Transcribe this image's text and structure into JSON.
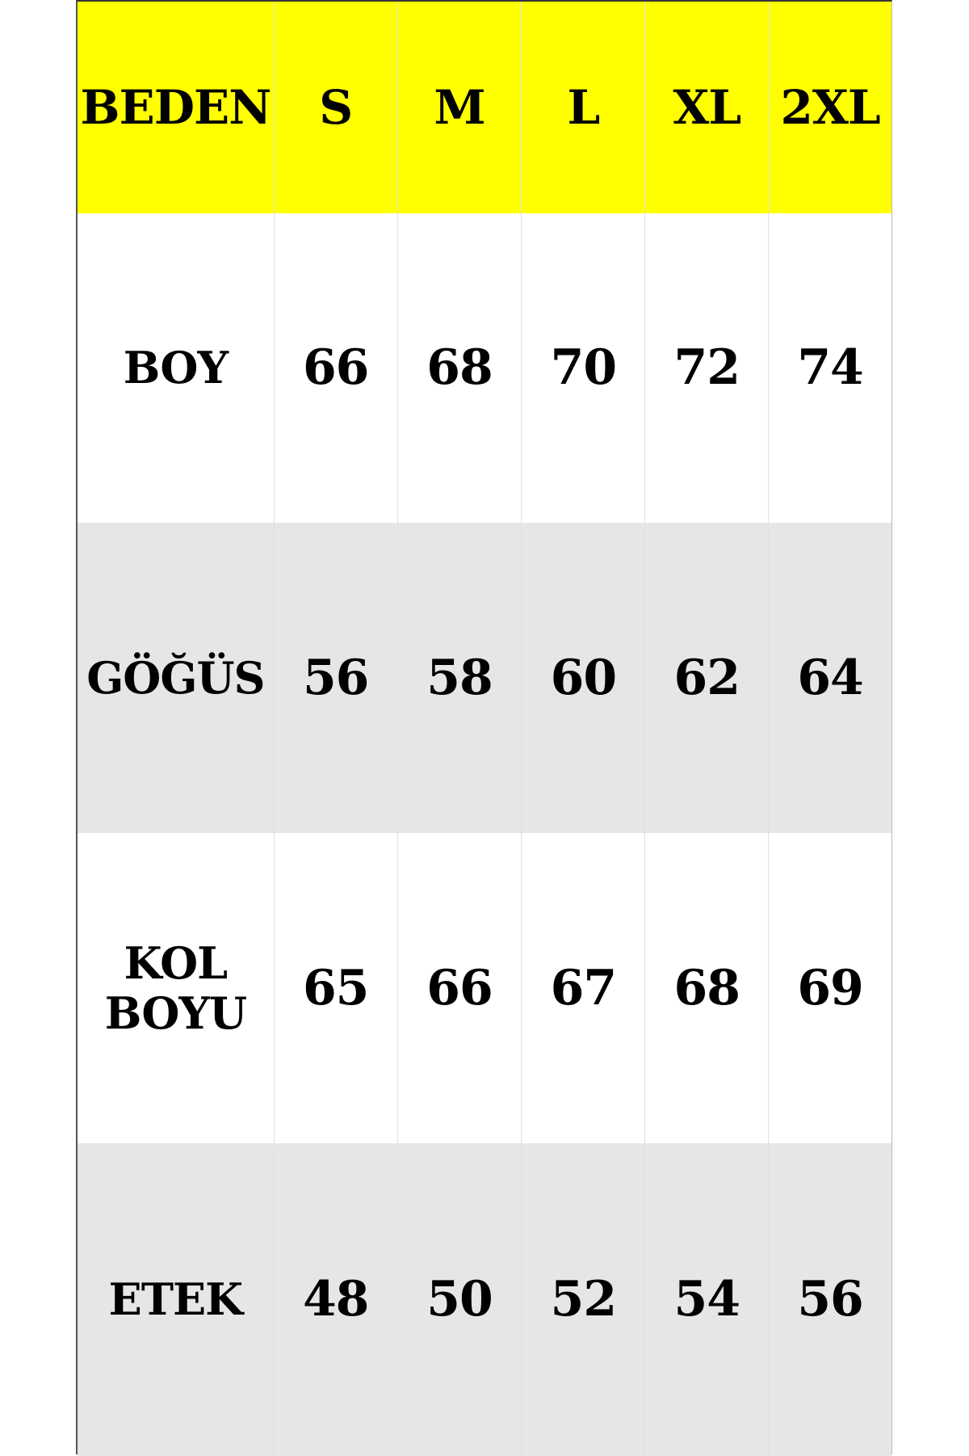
{
  "colors": {
    "header_bg": "#ffff00",
    "row_white": "#ffffff",
    "row_gray": "#e6e6e6"
  },
  "header": [
    "BEDEN",
    "S",
    "M",
    "L",
    "XL",
    "2XL"
  ],
  "rows": [
    {
      "label": "BOY",
      "values": [
        "66",
        "68",
        "70",
        "72",
        "74"
      ]
    },
    {
      "label": "GÖĞÜS",
      "values": [
        "56",
        "58",
        "60",
        "62",
        "64"
      ]
    },
    {
      "label": "KOL\nBOYU",
      "values": [
        "65",
        "66",
        "67",
        "68",
        "69"
      ]
    },
    {
      "label": "ETEK",
      "values": [
        "48",
        "50",
        "52",
        "54",
        "56"
      ]
    }
  ]
}
